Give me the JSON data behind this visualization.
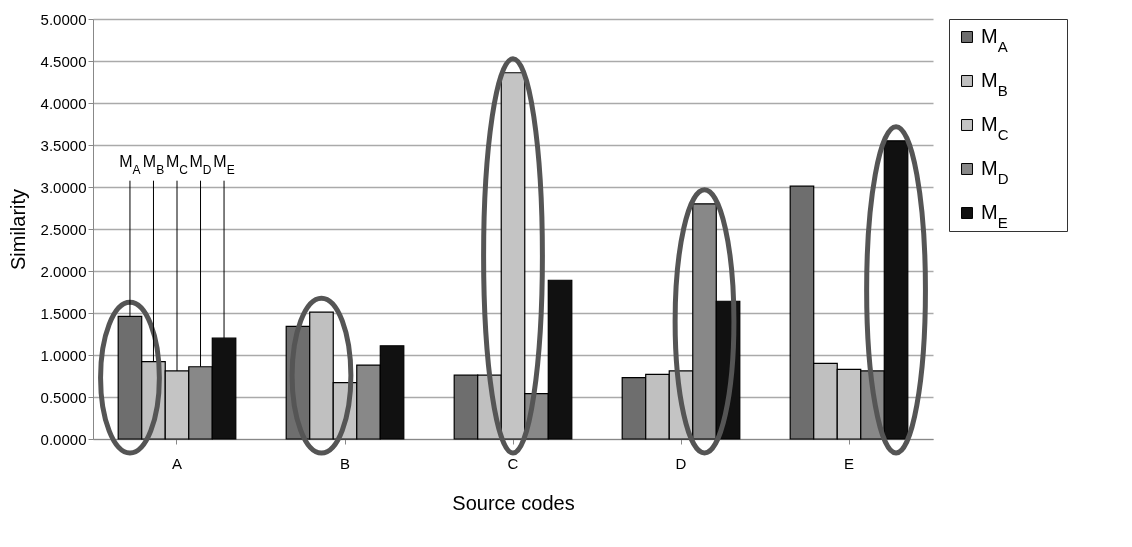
{
  "chart_data": {
    "type": "bar",
    "xlabel": "Source codes",
    "ylabel": "Similarity",
    "categories": [
      "A",
      "B",
      "C",
      "D",
      "E"
    ],
    "series": [
      {
        "name": "M$_{A}$",
        "color": "#6e6e6e",
        "values": [
          1.46,
          1.34,
          0.76,
          0.73,
          3.01
        ]
      },
      {
        "name": "M$_{B}$",
        "color": "#c0c0c0",
        "values": [
          0.92,
          1.51,
          0.76,
          0.77,
          0.9
        ]
      },
      {
        "name": "M$_{C}$",
        "color": "#c4c4c4",
        "values": [
          0.81,
          0.67,
          4.36,
          0.81,
          0.83
        ]
      },
      {
        "name": "M$_{D}$",
        "color": "#888888",
        "values": [
          0.86,
          0.88,
          0.54,
          2.8,
          0.81
        ]
      },
      {
        "name": "M$_{E}$",
        "color": "#111111",
        "values": [
          1.2,
          1.11,
          1.89,
          1.64,
          3.55
        ]
      }
    ],
    "annotations": [
      {
        "text": "M$_{A}$",
        "y": 1.46
      },
      {
        "text": "M$_{B}$",
        "y": 0.92
      },
      {
        "text": "M$_{C}$",
        "y": 0.81
      },
      {
        "text": "M$_{D}$",
        "y": 0.86
      },
      {
        "text": "M$_{E}$",
        "y": 1.2
      }
    ],
    "ylim": [
      0,
      5
    ],
    "yticks": [
      {
        "value": 0,
        "label": "0.0000"
      },
      {
        "value": 0.5,
        "label": "0.5000"
      },
      {
        "value": 1,
        "label": "1.0000"
      },
      {
        "value": 1.5,
        "label": "1.5000"
      },
      {
        "value": 2,
        "label": "2.0000"
      },
      {
        "value": 2.5,
        "label": "2.5000"
      },
      {
        "value": 3,
        "label": "3.0000"
      },
      {
        "value": 3.5,
        "label": "3.5000"
      },
      {
        "value": 4,
        "label": "4.0000"
      },
      {
        "value": 4.5,
        "label": "4.5000"
      },
      {
        "value": 5,
        "label": "5.0000"
      }
    ],
    "grid": "y",
    "legend": "right"
  }
}
